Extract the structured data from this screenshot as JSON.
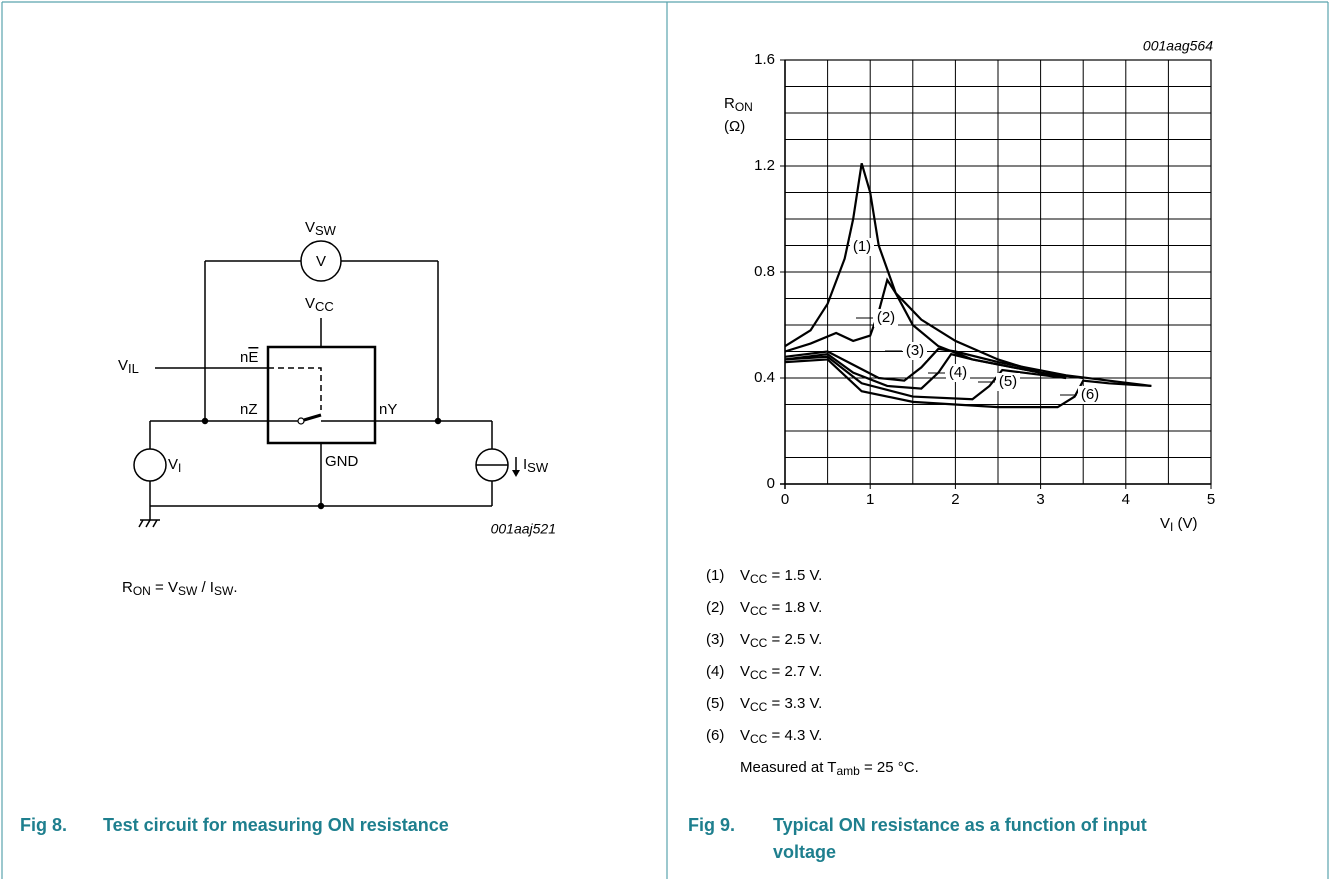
{
  "circuit": {
    "vsw_main": "V",
    "vsw_sub": "SW",
    "meter": "V",
    "vcc_main": "V",
    "vcc_sub": "CC",
    "vil_main": "V",
    "vil_sub": "IL",
    "ne_n": "n",
    "ne_e": "E",
    "nz": "nZ",
    "ny": "nY",
    "gnd": "GND",
    "vi_main": "V",
    "vi_sub": "I",
    "isw_main": "I",
    "isw_sub": "SW",
    "code": "001aaj521",
    "formula": {
      "r": "R",
      "r_sub": "ON",
      "eq": " = V",
      "v_sub": "SW",
      "slash": " / I",
      "i_sub": "SW",
      "end": "."
    }
  },
  "chart_data": {
    "type": "line",
    "code": "001aag564",
    "ylabel": {
      "main": "R",
      "sub": "ON",
      "unit": "(Ω)"
    },
    "xlabel": {
      "main": "V",
      "sub": "I",
      "unit": " (V)"
    },
    "xlim": [
      0,
      5
    ],
    "ylim": [
      0,
      1.6
    ],
    "xticks": [
      0,
      1,
      2,
      3,
      4,
      5
    ],
    "yticks": [
      0,
      0.4,
      0.8,
      1.2,
      1.6
    ],
    "xminor": [
      0.5,
      1.5,
      2.5,
      3.5,
      4.5
    ],
    "yminor": [
      0.1,
      0.2,
      0.3,
      0.5,
      0.6,
      0.7,
      0.9,
      1.0,
      1.1,
      1.3,
      1.4,
      1.5
    ],
    "grid": true,
    "series": [
      {
        "name": "(1)",
        "color": "#000000",
        "x": [
          0,
          0.3,
          0.5,
          0.7,
          0.8,
          0.9,
          1.0,
          1.1,
          1.3,
          1.6,
          2,
          2.5,
          3,
          3.3
        ],
        "values": [
          0.52,
          0.58,
          0.68,
          0.85,
          1.0,
          1.21,
          1.1,
          0.9,
          0.72,
          0.62,
          0.54,
          0.47,
          0.42,
          0.4
        ]
      },
      {
        "name": "(2)",
        "color": "#000000",
        "x": [
          0,
          0.3,
          0.6,
          0.8,
          1.0,
          1.1,
          1.2,
          1.3,
          1.5,
          1.8,
          2.2,
          3,
          3.5
        ],
        "values": [
          0.5,
          0.53,
          0.57,
          0.54,
          0.56,
          0.65,
          0.77,
          0.72,
          0.6,
          0.52,
          0.47,
          0.42,
          0.4
        ]
      },
      {
        "name": "(3)",
        "color": "#000000",
        "x": [
          0,
          0.5,
          0.8,
          1.1,
          1.4,
          1.6,
          1.8,
          2.0,
          2.5,
          3.3,
          4.3
        ],
        "values": [
          0.48,
          0.5,
          0.45,
          0.4,
          0.39,
          0.44,
          0.51,
          0.5,
          0.46,
          0.41,
          0.37
        ]
      },
      {
        "name": "(4)",
        "color": "#000000",
        "x": [
          0,
          0.5,
          0.8,
          1.2,
          1.6,
          1.8,
          1.95,
          2.2,
          3
        ],
        "values": [
          0.47,
          0.49,
          0.42,
          0.37,
          0.36,
          0.42,
          0.49,
          0.47,
          0.42
        ]
      },
      {
        "name": "(5)",
        "color": "#000000",
        "x": [
          0,
          0.5,
          0.9,
          1.5,
          2.2,
          2.4,
          2.55,
          2.8,
          3.3
        ],
        "values": [
          0.47,
          0.48,
          0.38,
          0.33,
          0.32,
          0.37,
          0.43,
          0.42,
          0.4
        ]
      },
      {
        "name": "(6)",
        "color": "#000000",
        "x": [
          0,
          0.5,
          0.9,
          1.5,
          2.5,
          3.2,
          3.4,
          3.5,
          3.8,
          4.3
        ],
        "values": [
          0.46,
          0.47,
          0.35,
          0.31,
          0.29,
          0.29,
          0.33,
          0.39,
          0.38,
          0.37
        ]
      }
    ]
  },
  "legend": [
    {
      "num": "(1)",
      "v": "V",
      "sub": "CC",
      "text": " = 1.5 V."
    },
    {
      "num": "(2)",
      "v": "V",
      "sub": "CC",
      "text": " = 1.8 V."
    },
    {
      "num": "(3)",
      "v": "V",
      "sub": "CC",
      "text": " = 2.5 V."
    },
    {
      "num": "(4)",
      "v": "V",
      "sub": "CC",
      "text": " = 2.7 V."
    },
    {
      "num": "(5)",
      "v": "V",
      "sub": "CC",
      "text": " = 3.3 V."
    },
    {
      "num": "(6)",
      "v": "V",
      "sub": "CC",
      "text": " = 4.3 V."
    }
  ],
  "note": {
    "pre": "Measured at T",
    "sub": "amb",
    "post": " = 25 °C."
  },
  "captions": [
    {
      "fig": "Fig 8.",
      "lines": [
        "Test circuit for measuring ON resistance"
      ]
    },
    {
      "fig": "Fig 9.",
      "lines": [
        "Typical ON resistance as a function of input",
        "voltage"
      ]
    }
  ]
}
